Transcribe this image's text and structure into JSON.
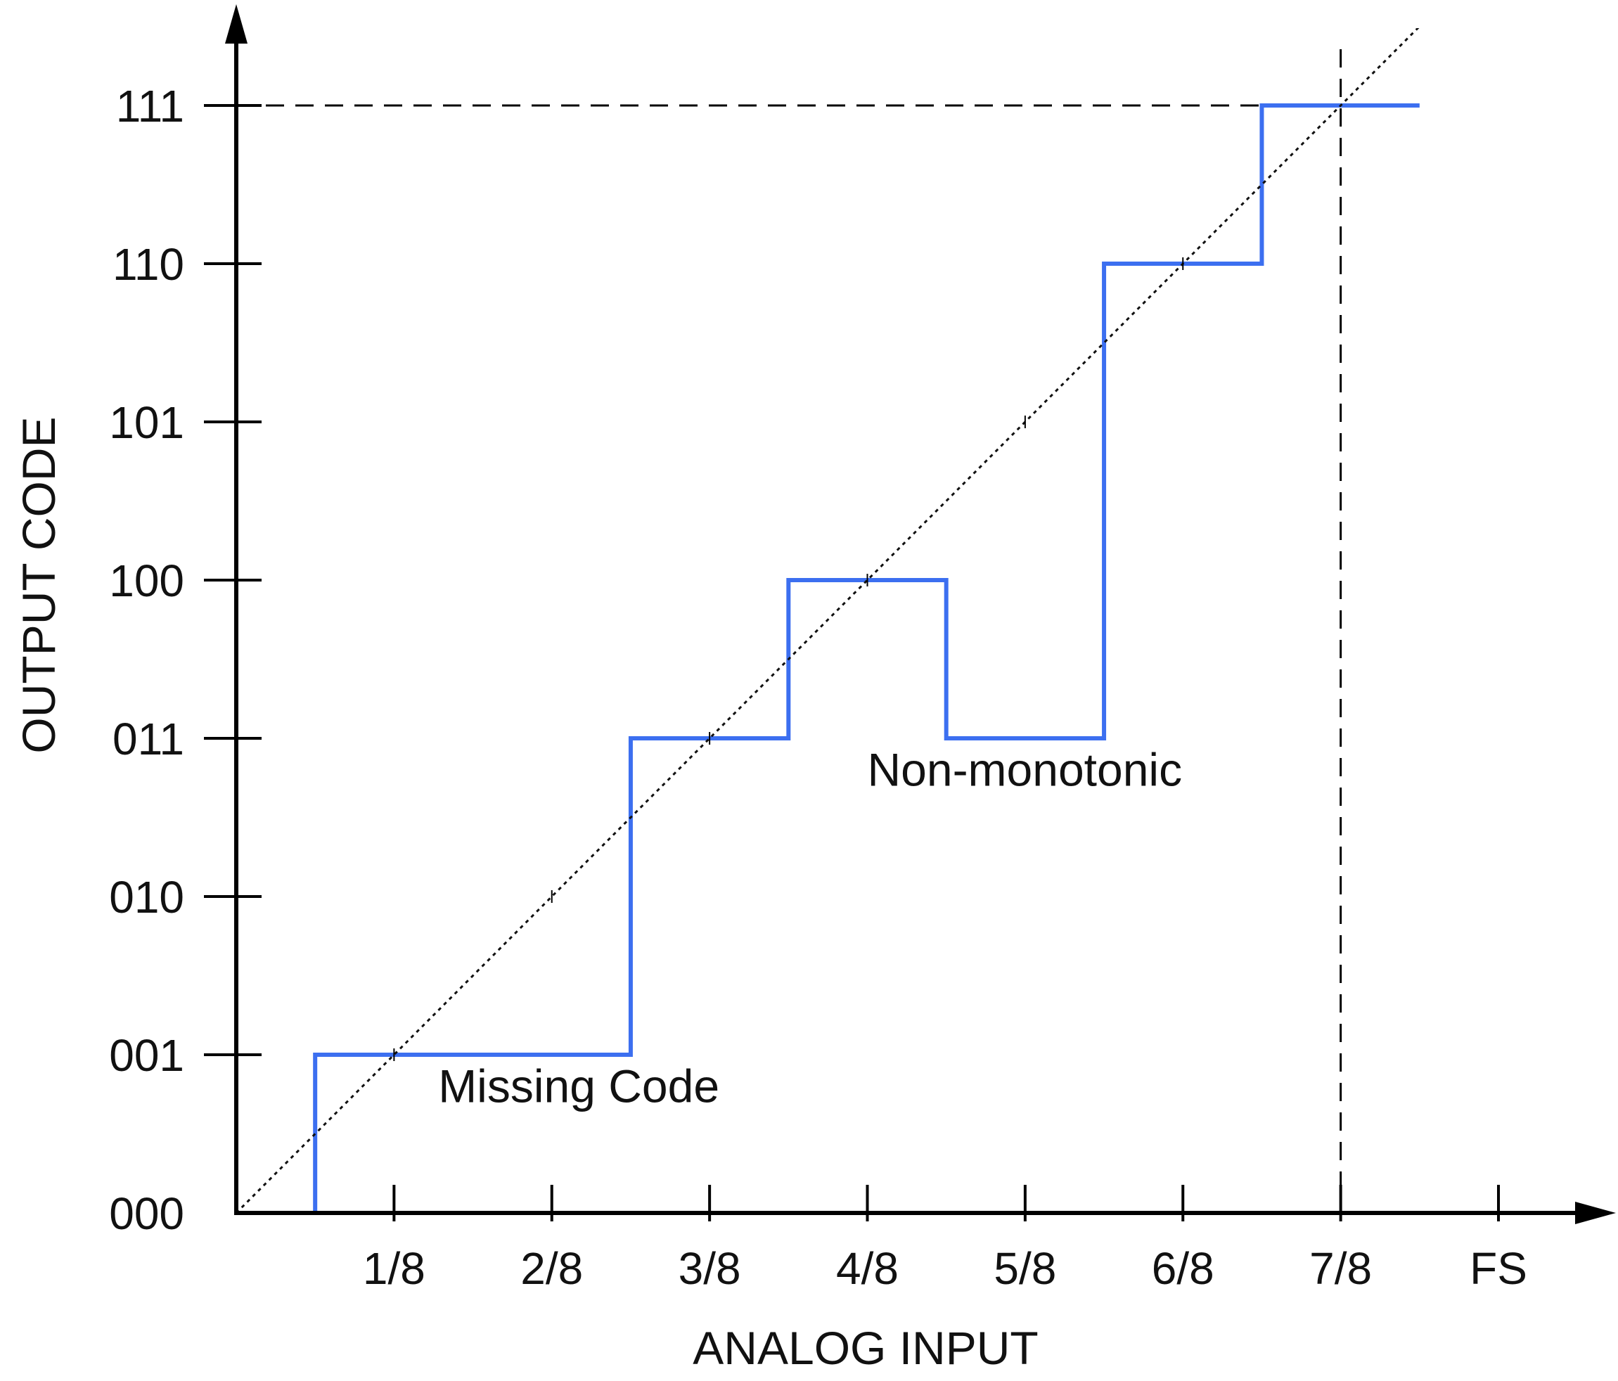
{
  "chart_data": {
    "type": "line",
    "title": "",
    "xlabel": "ANALOG INPUT",
    "ylabel": "OUTPUT CODE",
    "x_ticks": [
      "1/8",
      "2/8",
      "3/8",
      "4/8",
      "5/8",
      "6/8",
      "7/8",
      "FS"
    ],
    "y_ticks": [
      "000",
      "001",
      "010",
      "011",
      "100",
      "101",
      "110",
      "111"
    ],
    "xlim": [
      0,
      1
    ],
    "ylim": [
      0,
      7
    ],
    "grid": false,
    "series": [
      {
        "style": "step",
        "color": "#3c6ff0",
        "points": [
          [
            0,
            0
          ],
          [
            0.0625,
            0
          ],
          [
            0.0625,
            1
          ],
          [
            0.3125,
            1
          ],
          [
            0.3125,
            3
          ],
          [
            0.4375,
            3
          ],
          [
            0.4375,
            4
          ],
          [
            0.5625,
            4
          ],
          [
            0.5625,
            3
          ],
          [
            0.6875,
            3
          ],
          [
            0.6875,
            6
          ],
          [
            0.8125,
            6
          ],
          [
            0.8125,
            7
          ],
          [
            0.9375,
            7
          ]
        ]
      },
      {
        "style": "dotted",
        "color": "#111111",
        "points": [
          [
            0,
            0
          ],
          [
            0.9375,
            7.5
          ]
        ]
      }
    ],
    "reference_lines": [
      {
        "orientation": "horizontal",
        "value": 7,
        "style": "dashed"
      },
      {
        "orientation": "vertical",
        "value": 0.875,
        "style": "dashed"
      }
    ],
    "annotations": [
      {
        "text": "Missing Code",
        "x": 0.16,
        "y": 0.7
      },
      {
        "text": "Non-monotonic",
        "x": 0.5,
        "y": 2.7
      }
    ]
  }
}
